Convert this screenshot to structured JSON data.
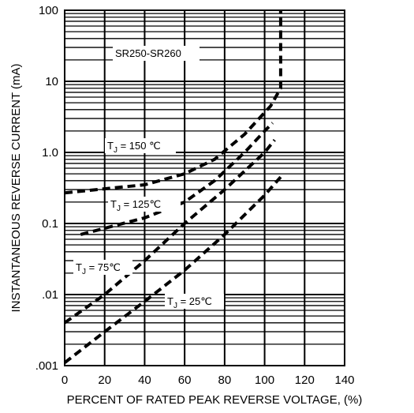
{
  "chart_data": {
    "type": "line",
    "title": "",
    "xlabel": "PERCENT OF RATED PEAK REVERSE VOLTAGE, (%)",
    "ylabel": "INSTANTANEOUS REVERSE CURRENT (mA)",
    "xlim": [
      0,
      140
    ],
    "ylim": [
      0.001,
      100
    ],
    "yscale": "log",
    "grid": true,
    "x_ticks": [
      "0",
      "20",
      "40",
      "60",
      "80",
      "100",
      "120",
      "140"
    ],
    "y_ticks": [
      ".001",
      ".01",
      "0.1",
      "1.0",
      "10",
      "100"
    ],
    "annotations": {
      "part": "SR250-SR260",
      "t150": {
        "main": "T",
        "sub": "J",
        "rest": " = 150 ℃"
      },
      "t125": {
        "main": "T",
        "sub": "J",
        "rest": " = 125℃"
      },
      "t75": {
        "main": "T",
        "sub": "J",
        "rest": " = 75℃"
      },
      "t25": {
        "main": "T",
        "sub": "J",
        "rest": " = 25℃"
      }
    },
    "series": [
      {
        "x": [
          0,
          40,
          60,
          75,
          90,
          103,
          108,
          108
        ],
        "y": [
          0.27,
          0.35,
          0.5,
          0.8,
          1.8,
          4.5,
          8,
          100
        ]
      },
      {
        "x": [
          8,
          40,
          60,
          75,
          90,
          100,
          104
        ],
        "y": [
          0.07,
          0.12,
          0.2,
          0.4,
          1.0,
          2.0,
          2.6
        ]
      },
      {
        "x": [
          0,
          20,
          40,
          60,
          80,
          100,
          105
        ],
        "y": [
          0.004,
          0.01,
          0.03,
          0.1,
          0.3,
          1.0,
          1.5
        ]
      },
      {
        "x": [
          0,
          20,
          40,
          60,
          80,
          100,
          108
        ],
        "y": [
          0.0011,
          0.003,
          0.008,
          0.022,
          0.07,
          0.25,
          0.45
        ]
      }
    ]
  }
}
